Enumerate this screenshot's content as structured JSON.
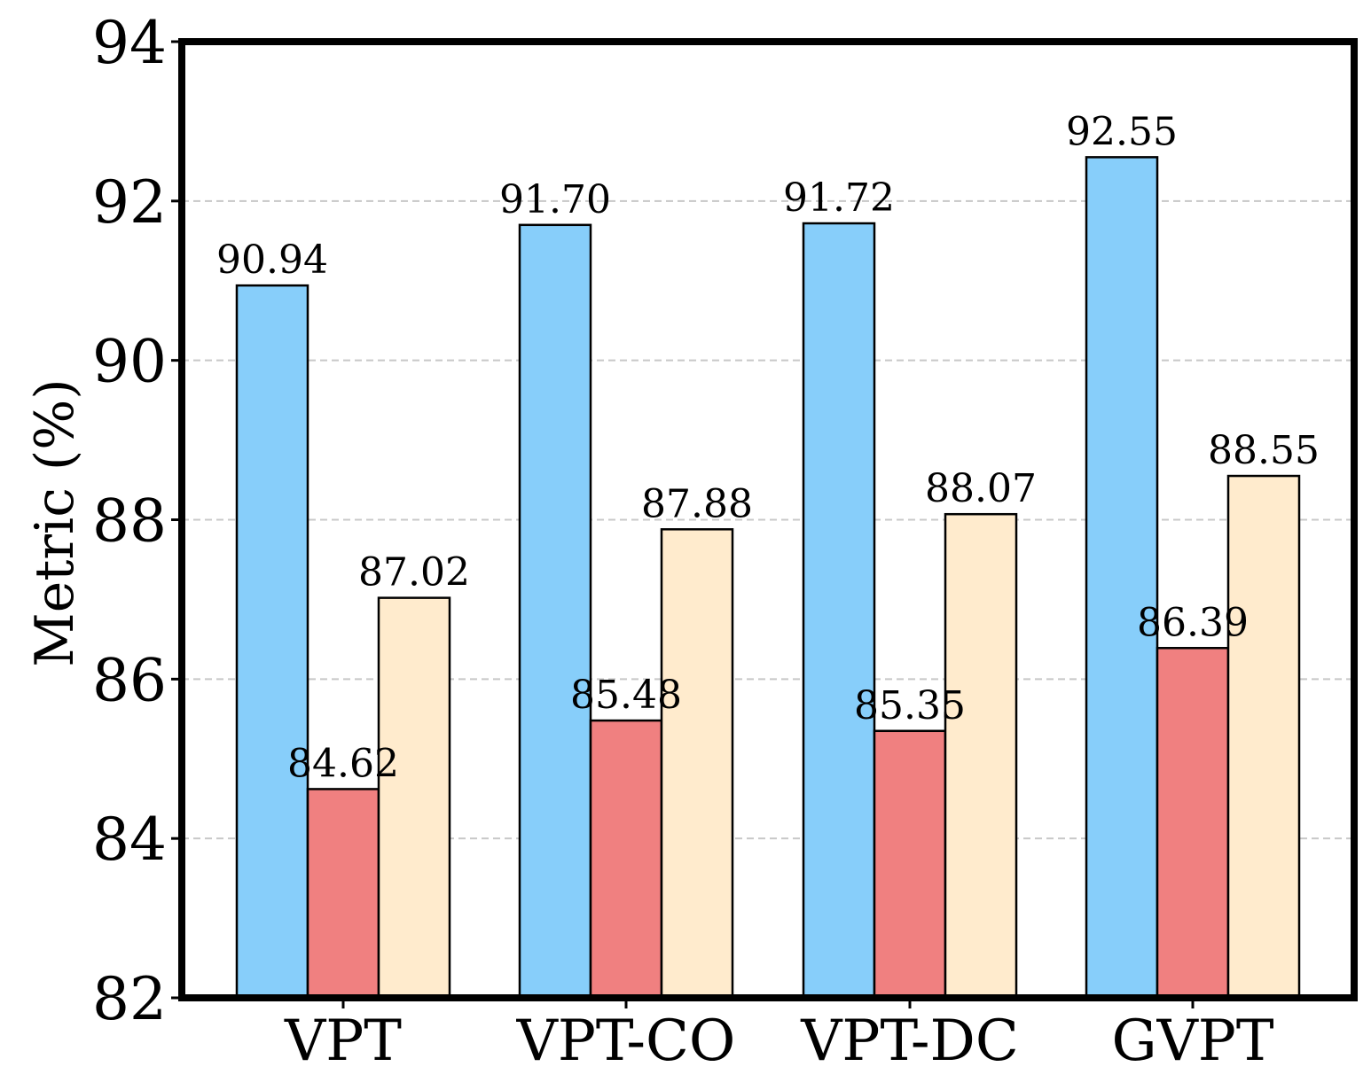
{
  "chart_data": {
    "type": "bar",
    "categories": [
      "VPT",
      "VPT-CO",
      "VPT-DC",
      "GVPT"
    ],
    "series": [
      {
        "values": [
          90.94,
          91.7,
          91.72,
          92.55
        ],
        "color": "#87CEFA"
      },
      {
        "values": [
          84.62,
          85.48,
          85.35,
          86.39
        ],
        "color": "#F08080"
      },
      {
        "values": [
          87.02,
          87.88,
          88.07,
          88.55
        ],
        "color": "#FFEBCD"
      }
    ],
    "value_labels": [
      [
        "90.94",
        "91.70",
        "91.72",
        "92.55"
      ],
      [
        "84.62",
        "85.48",
        "85.35",
        "86.39"
      ],
      [
        "87.02",
        "87.88",
        "88.07",
        "88.55"
      ]
    ],
    "ylabel": "Metric (%)",
    "ylim": [
      82,
      94
    ],
    "yticks": [
      82,
      84,
      86,
      88,
      90,
      92,
      94
    ],
    "ytick_labels": [
      "82",
      "84",
      "86",
      "88",
      "90",
      "92",
      "94"
    ],
    "grid": "y-dashed"
  }
}
